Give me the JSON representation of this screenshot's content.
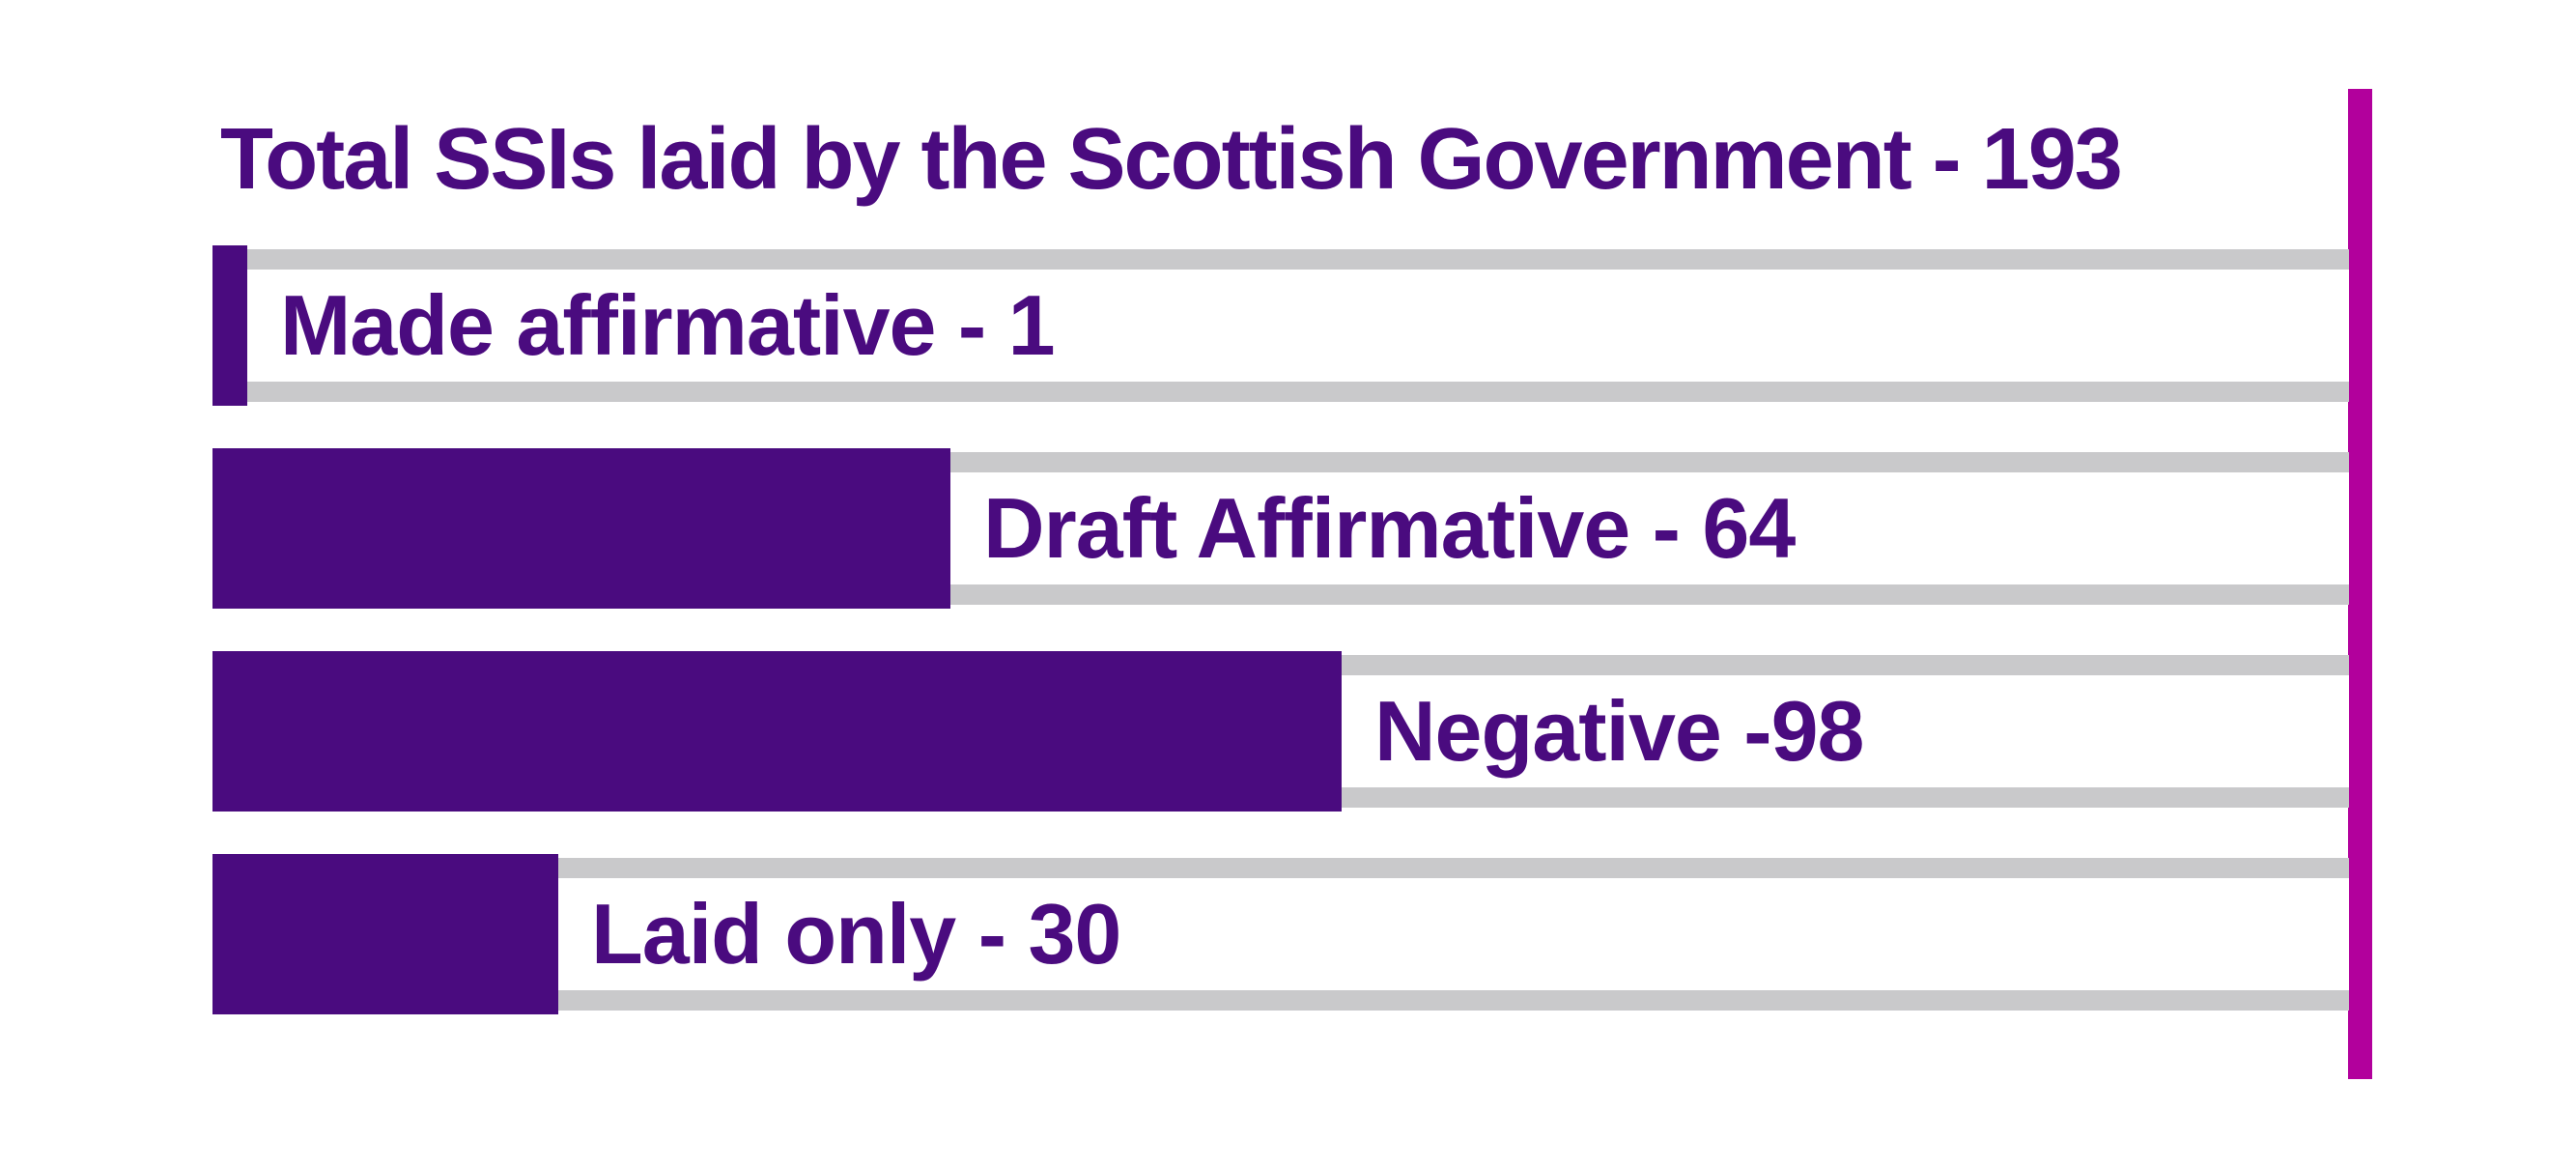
{
  "title": "Total SSIs laid by the Scottish Government - 193",
  "chart_data": {
    "type": "bar",
    "orientation": "horizontal",
    "title": "Total SSIs laid by the Scottish Government - 193",
    "total_label": "Total SSIs laid by the Scottish Government",
    "total_value": 193,
    "categories": [
      "Made affirmative",
      "Draft Affirmative",
      "Negative",
      "Laid only"
    ],
    "values": [
      1,
      64,
      98,
      30
    ],
    "bars": [
      {
        "category": "Made affirmative",
        "value": 1,
        "label": "Made affirmative - 1"
      },
      {
        "category": "Draft Affirmative",
        "value": 64,
        "label": "Draft Affirmative - 64"
      },
      {
        "category": "Negative",
        "value": 98,
        "label": "Negative -98"
      },
      {
        "category": "Laid only",
        "value": 30,
        "label": "Laid only - 30"
      }
    ],
    "xlim": [
      0,
      185
    ],
    "grid": false,
    "legend": "none",
    "colors": {
      "bar": "#4A0B7F",
      "title_text": "#4A0B7F",
      "label_text": "#4A0B7F",
      "track": "#C9C9CB",
      "accent_bar": "#B2009C",
      "background": "#FFFFFF"
    }
  }
}
